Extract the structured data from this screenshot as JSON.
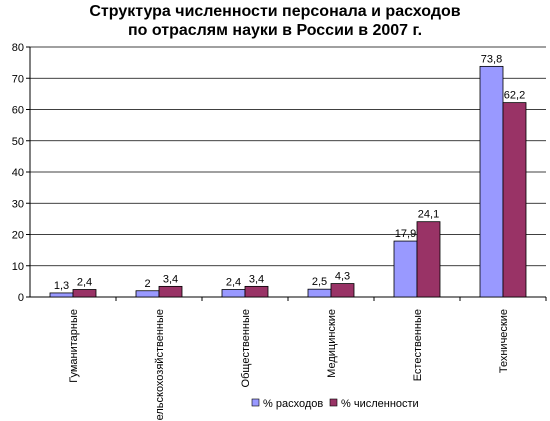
{
  "chart_data": {
    "type": "bar",
    "title": "Структура численности персонала и расходов по отраслям науки в России в 2007 г.",
    "title_lines": [
      "Структура численности персонала и расходов",
      "по отраслям науки в России в 2007 г."
    ],
    "categories": [
      "Гуманитарные",
      "Сельскохозяйственные",
      "Общественные",
      "Медицинские",
      "Естественные",
      "Технические"
    ],
    "series": [
      {
        "name": "% расходов",
        "values": [
          1.3,
          2,
          2.4,
          2.5,
          17.9,
          73.8
        ],
        "labels": [
          "1,3",
          "2",
          "2,4",
          "2,5",
          "17,9",
          "73,8"
        ],
        "color": "#9999ff"
      },
      {
        "name": "% численности",
        "values": [
          2.4,
          3.4,
          3.4,
          4.3,
          24.1,
          62.2
        ],
        "labels": [
          "2,4",
          "3,4",
          "3,4",
          "4,3",
          "24,1",
          "62,2"
        ],
        "color": "#993366"
      }
    ],
    "yticks": [
      "0",
      "10",
      "20",
      "30",
      "40",
      "50",
      "60",
      "70",
      "80"
    ],
    "ylim": [
      0,
      80
    ],
    "xlabel": "",
    "ylabel": "",
    "grid": "horizontal",
    "legend": "bottom"
  }
}
